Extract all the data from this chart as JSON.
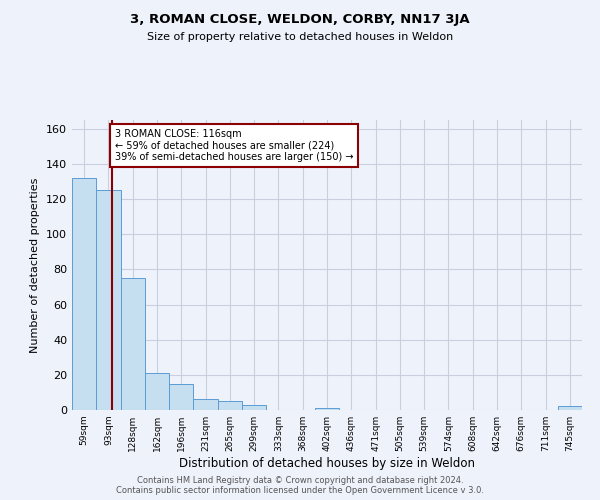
{
  "title": "3, ROMAN CLOSE, WELDON, CORBY, NN17 3JA",
  "subtitle": "Size of property relative to detached houses in Weldon",
  "xlabel": "Distribution of detached houses by size in Weldon",
  "ylabel": "Number of detached properties",
  "bin_labels": [
    "59sqm",
    "93sqm",
    "128sqm",
    "162sqm",
    "196sqm",
    "231sqm",
    "265sqm",
    "299sqm",
    "333sqm",
    "368sqm",
    "402sqm",
    "436sqm",
    "471sqm",
    "505sqm",
    "539sqm",
    "574sqm",
    "608sqm",
    "642sqm",
    "676sqm",
    "711sqm",
    "745sqm"
  ],
  "bar_heights": [
    132,
    125,
    75,
    21,
    15,
    6,
    5,
    3,
    0,
    0,
    1,
    0,
    0,
    0,
    0,
    0,
    0,
    0,
    0,
    0,
    2
  ],
  "bar_color": "#c5dff0",
  "bar_edgecolor": "#5b9bd5",
  "ylim": [
    0,
    165
  ],
  "yticks": [
    0,
    20,
    40,
    60,
    80,
    100,
    120,
    140,
    160
  ],
  "property_line_color": "#8b0000",
  "annotation_text": "3 ROMAN CLOSE: 116sqm\n← 59% of detached houses are smaller (224)\n39% of semi-detached houses are larger (150) →",
  "annotation_box_edgecolor": "#8b0000",
  "footer1": "Contains HM Land Registry data © Crown copyright and database right 2024.",
  "footer2": "Contains public sector information licensed under the Open Government Licence v 3.0.",
  "bg_color": "#eef2fb",
  "plot_bg_color": "#eef2fb",
  "grid_color": "#c8d0e0"
}
